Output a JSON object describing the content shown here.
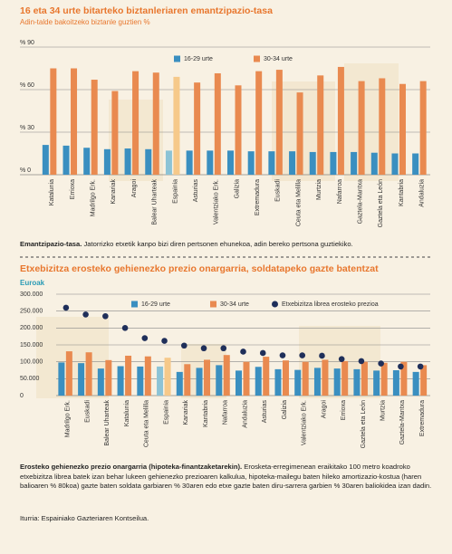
{
  "chart_data": [
    {
      "type": "bar",
      "title": "16 eta 34 urte bitarteko biztanleriaren emantzipazio-tasa",
      "subtitle": "Adin-talde bakoitzeko biztanle guztien %",
      "categories": [
        "Katalunia",
        "Errioxa",
        "Madrilgo Erk.",
        "Kanariak",
        "Aragoi",
        "Balear Uharteak",
        "Espainia",
        "Asturias",
        "Valentziako Erk.",
        "Galizia",
        "Extremadura",
        "Euskadi",
        "Ceuta eta Melilla",
        "Murtzia",
        "Nafarroa",
        "Gaztela-Mantxa",
        "Gaztela eta León",
        "Kantabria",
        "Andaluzia"
      ],
      "highlight_index": 6,
      "series": [
        {
          "name": "16-29 urte",
          "color": "#3a8fc0",
          "highlight_color": "#8cc3d6",
          "values": [
            21,
            20.5,
            19,
            18,
            18.5,
            18,
            17,
            17,
            17,
            17,
            16.5,
            16.5,
            16.5,
            16,
            16,
            16,
            15.5,
            15,
            15
          ]
        },
        {
          "name": "30-34 urte",
          "color": "#e98a50",
          "highlight_color": "#f6c98a",
          "values": [
            75,
            75,
            67,
            59,
            73,
            72,
            69,
            65,
            71.5,
            63,
            73,
            74,
            58,
            70,
            76,
            66,
            68,
            64,
            66
          ]
        }
      ],
      "ylim": [
        0,
        90
      ],
      "yticks": [
        {
          "value": 0,
          "label": "% 0"
        },
        {
          "value": 30,
          "label": "% 30"
        },
        {
          "value": 60,
          "label": "% 60"
        },
        {
          "value": 90,
          "label": "% 90"
        }
      ],
      "grid": true,
      "caption_title": "Emantzipazio-tasa.",
      "caption_text": "Jatorrizko etxetik kanpo bizi diren pertsonen ehunekoa, adin bereko pertsona guztiekiko."
    },
    {
      "type": "bar",
      "title": "Etxebizitza erosteko gehienezko prezio onargarria, soldatapeko gazte batentzat",
      "ylabel": "Euroak",
      "categories": [
        "Madrilgo Erk.",
        "Euskadi",
        "Balear Uharteak",
        "Katalunia",
        "Ceuta eta Melilla",
        "Espainia",
        "Kanariak",
        "Kantabria",
        "Nafarroa",
        "Andaluzia",
        "Asturias",
        "Galizia",
        "Valentziako Erk.",
        "Aragoi",
        "Errioxa",
        "Gaztela eta León",
        "Murtzia",
        "Gaztela-Mantxa",
        "Extremadura"
      ],
      "highlight_index": 5,
      "series": [
        {
          "name": "16-29 urte",
          "color": "#3a8fc0",
          "highlight_color": "#8cc3d6",
          "values": [
            98000,
            96000,
            80000,
            87000,
            86000,
            86000,
            70000,
            82000,
            90000,
            74000,
            85000,
            78000,
            76000,
            82000,
            80000,
            78000,
            74000,
            75000,
            70000
          ]
        },
        {
          "name": "30-34 urte",
          "color": "#e98a50",
          "highlight_color": "#f6c98a",
          "values": [
            131000,
            128000,
            105000,
            118000,
            116000,
            112000,
            93000,
            106000,
            120000,
            100000,
            115000,
            104000,
            100000,
            106000,
            102000,
            100000,
            97000,
            100000,
            90000
          ]
        },
        {
          "name": "Etxebizitza librea erosteko prezioa",
          "type": "scatter",
          "color": "#1f2f5a",
          "values": [
            260000,
            240000,
            235000,
            200000,
            170000,
            162000,
            148000,
            140000,
            140000,
            130000,
            126000,
            119000,
            119000,
            118000,
            108000,
            102000,
            95000,
            86000,
            86000
          ]
        }
      ],
      "ylim": [
        0,
        300000
      ],
      "yticks": [
        0,
        {
          "value": 50000,
          "label": "50.000"
        },
        {
          "value": 100000,
          "label": "100.000"
        },
        {
          "value": 150000,
          "label": "150.000"
        },
        {
          "value": 200000,
          "label": "200.000"
        },
        {
          "value": 250000,
          "label": "250.000"
        },
        {
          "value": 300000,
          "label": "300.000"
        }
      ],
      "grid": true,
      "caption_title": "Erosteko gehienezko prezio onargarria (hipoteka-finantzaketarekin).",
      "caption_text": "Erosketa-erregimenean eraikitako 100 metro koadroko etxebizitza librea batek izan behar lukeen gehienezko prezioaren kalkulua, hipoteka-mailegu baten hileko amortizazio-kostua (haren balioaren % 80koa) gazte baten soldata garbiaren % 30aren edo etxe gazte baten diru-sarrera garbien % 30aren baliokidea izan dadin."
    }
  ],
  "source": "Iturria: Espainiako Gazteriaren Kontseilua."
}
